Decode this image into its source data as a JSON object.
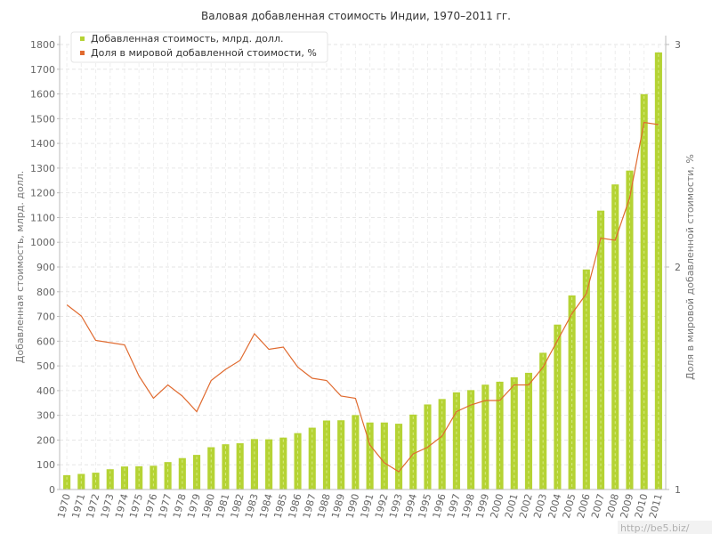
{
  "watermark": "http://be5.biz/",
  "chart_data": {
    "type": "bar",
    "title": "Валовая добавленная стоимость Индии, 1970–2011 гг.",
    "ylabel": "Добавленная стоимость, млрд. долл.",
    "y2label": "Доля в мировой добавленной стоимости, %",
    "ylim": [
      0,
      1800
    ],
    "y2lim": [
      1,
      3
    ],
    "yticks": [
      0,
      100,
      200,
      300,
      400,
      500,
      600,
      700,
      800,
      900,
      1000,
      1100,
      1200,
      1300,
      1400,
      1500,
      1600,
      1700,
      1800
    ],
    "y2ticks": [
      1,
      2,
      3
    ],
    "grid": true,
    "legend_position": "top-left",
    "colors": {
      "bars": "#b5d334",
      "line": "#e06a2f"
    },
    "categories": [
      "1970",
      "1971",
      "1972",
      "1973",
      "1974",
      "1975",
      "1976",
      "1977",
      "1978",
      "1979",
      "1980",
      "1981",
      "1982",
      "1983",
      "1984",
      "1985",
      "1986",
      "1987",
      "1988",
      "1989",
      "1990",
      "1991",
      "1992",
      "1993",
      "1994",
      "1995",
      "1996",
      "1997",
      "1998",
      "1999",
      "2000",
      "2001",
      "2002",
      "2003",
      "2004",
      "2005",
      "2006",
      "2007",
      "2008",
      "2009",
      "2010",
      "2011"
    ],
    "series": [
      {
        "name": "Добавленная стоимость, млрд. долл.",
        "type": "bar",
        "axis": "left",
        "values": [
          58,
          63,
          68,
          82,
          93,
          94,
          96,
          111,
          127,
          140,
          171,
          183,
          187,
          204,
          203,
          210,
          228,
          250,
          279,
          280,
          301,
          271,
          271,
          266,
          303,
          344,
          366,
          393,
          402,
          424,
          436,
          454,
          472,
          553,
          667,
          785,
          890,
          1128,
          1234,
          1290,
          1599,
          1768
        ]
      },
      {
        "name": "Доля в мировой добавленной стоимости, %",
        "type": "line",
        "axis": "right",
        "values": [
          1.83,
          1.78,
          1.67,
          1.66,
          1.65,
          1.51,
          1.41,
          1.47,
          1.42,
          1.35,
          1.49,
          1.54,
          1.58,
          1.7,
          1.63,
          1.64,
          1.55,
          1.5,
          1.49,
          1.42,
          1.41,
          1.2,
          1.12,
          1.08,
          1.16,
          1.19,
          1.24,
          1.35,
          1.38,
          1.4,
          1.4,
          1.47,
          1.47,
          1.55,
          1.67,
          1.79,
          1.88,
          2.13,
          2.12,
          2.31,
          2.65,
          2.64
        ]
      }
    ]
  }
}
